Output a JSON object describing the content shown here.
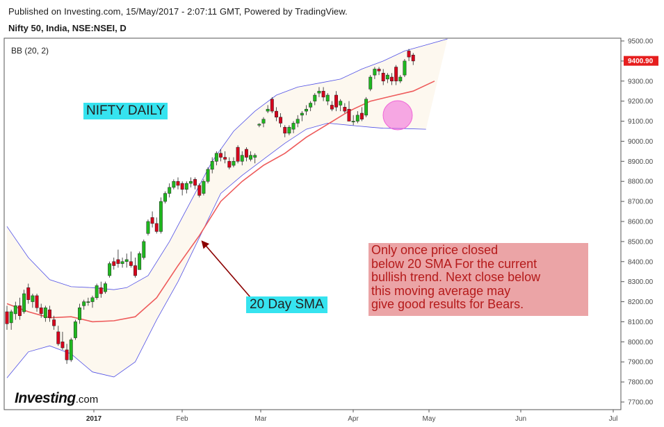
{
  "header": {
    "published": "Published on Investing.com, 15/May/2017 - 2:07:11 GMT, Powered by TradingView.",
    "symbol": "Nifty 50, India, NSE:NSEI, D"
  },
  "indicator_label": "BB (20, 2)",
  "annotations": {
    "nifty_daily": "NIFTY DAILY",
    "sma_label": "20 Day SMA",
    "note": "Only once price closed\nbelow 20 SMA For the current\nbullish trend. Next close below\nthis moving average may\ngive good results for Bears."
  },
  "logo": {
    "text": "Investing",
    "suffix": ".com"
  },
  "colors": {
    "up": "#1fb81f",
    "down": "#d6001c",
    "sma": "#ee5b5b",
    "band": "#5050e6",
    "band_fill": "#fdf8ef",
    "arrow": "#8b0000",
    "highlight": "#f065d8",
    "last_price_bg": "#e61e1e"
  },
  "chart_data": {
    "type": "candlestick",
    "title": "Nifty 50, India, NSE:NSEI, D",
    "indicator": "BB (20, 2)",
    "ylim": [
      7680,
      9520
    ],
    "y_ticks": [
      "9500.00",
      "9400.00",
      "9300.00",
      "9200.00",
      "9100.00",
      "9000.00",
      "8900.00",
      "8800.00",
      "8700.00",
      "8600.00",
      "8500.00",
      "8400.00",
      "8300.00",
      "8200.00",
      "8100.00",
      "8000.00",
      "7900.00",
      "7800.00",
      "7700.00"
    ],
    "x_ticks": [
      "2017",
      "Feb",
      "Mar",
      "Apr",
      "May",
      "Jun",
      "Jul"
    ],
    "last_price": "9400.90",
    "upper_band": [
      [
        0,
        8575
      ],
      [
        5,
        8420
      ],
      [
        10,
        8310
      ],
      [
        15,
        8275
      ],
      [
        20,
        8270
      ],
      [
        25,
        8260
      ],
      [
        28,
        8270
      ],
      [
        33,
        8330
      ],
      [
        38,
        8500
      ],
      [
        43,
        8700
      ],
      [
        48,
        8900
      ],
      [
        53,
        9050
      ],
      [
        58,
        9150
      ],
      [
        63,
        9230
      ],
      [
        68,
        9270
      ],
      [
        73,
        9290
      ],
      [
        78,
        9310
      ],
      [
        83,
        9360
      ],
      [
        88,
        9400
      ],
      [
        93,
        9450
      ],
      [
        98,
        9480
      ],
      [
        103,
        9510
      ]
    ],
    "sma20": [
      [
        0,
        8190
      ],
      [
        5,
        8150
      ],
      [
        10,
        8120
      ],
      [
        15,
        8125
      ],
      [
        20,
        8100
      ],
      [
        25,
        8105
      ],
      [
        30,
        8125
      ],
      [
        35,
        8220
      ],
      [
        40,
        8380
      ],
      [
        45,
        8530
      ],
      [
        50,
        8700
      ],
      [
        55,
        8800
      ],
      [
        60,
        8880
      ],
      [
        65,
        8940
      ],
      [
        70,
        9020
      ],
      [
        75,
        9085
      ],
      [
        80,
        9150
      ],
      [
        85,
        9200
      ],
      [
        90,
        9225
      ],
      [
        95,
        9250
      ],
      [
        100,
        9300
      ]
    ],
    "lower_band": [
      [
        0,
        7820
      ],
      [
        5,
        7950
      ],
      [
        10,
        7980
      ],
      [
        15,
        7940
      ],
      [
        20,
        7850
      ],
      [
        25,
        7825
      ],
      [
        30,
        7900
      ],
      [
        35,
        8110
      ],
      [
        40,
        8300
      ],
      [
        45,
        8520
      ],
      [
        50,
        8740
      ],
      [
        55,
        8830
      ],
      [
        60,
        8910
      ],
      [
        65,
        8990
      ],
      [
        70,
        9060
      ],
      [
        75,
        9090
      ],
      [
        80,
        9080
      ],
      [
        85,
        9070
      ],
      [
        88,
        9065
      ],
      [
        93,
        9063
      ],
      [
        98,
        9060
      ]
    ],
    "candles": [
      {
        "o": 8150,
        "h": 8180,
        "l": 8060,
        "c": 8090
      },
      {
        "o": 8095,
        "h": 8160,
        "l": 8060,
        "c": 8150
      },
      {
        "o": 8140,
        "h": 8200,
        "l": 8110,
        "c": 8180
      },
      {
        "o": 8180,
        "h": 8220,
        "l": 8110,
        "c": 8130
      },
      {
        "o": 8150,
        "h": 8260,
        "l": 8140,
        "c": 8240
      },
      {
        "o": 8270,
        "h": 8290,
        "l": 8190,
        "c": 8210
      },
      {
        "o": 8200,
        "h": 8240,
        "l": 8170,
        "c": 8230
      },
      {
        "o": 8230,
        "h": 8240,
        "l": 8150,
        "c": 8170
      },
      {
        "o": 8170,
        "h": 8190,
        "l": 8120,
        "c": 8140
      },
      {
        "o": 8120,
        "h": 8180,
        "l": 8100,
        "c": 8170
      },
      {
        "o": 8160,
        "h": 8180,
        "l": 8100,
        "c": 8120
      },
      {
        "o": 8110,
        "h": 8130,
        "l": 8060,
        "c": 8080
      },
      {
        "o": 8050,
        "h": 8080,
        "l": 7980,
        "c": 7990
      },
      {
        "o": 8000,
        "h": 8050,
        "l": 7960,
        "c": 7970
      },
      {
        "o": 7960,
        "h": 7990,
        "l": 7890,
        "c": 7910
      },
      {
        "o": 7910,
        "h": 8020,
        "l": 7900,
        "c": 8010
      },
      {
        "o": 8020,
        "h": 8110,
        "l": 8010,
        "c": 8100
      },
      {
        "o": 8110,
        "h": 8190,
        "l": 8090,
        "c": 8170
      },
      {
        "o": 8180,
        "h": 8210,
        "l": 8160,
        "c": 8200
      },
      {
        "o": 8200,
        "h": 8220,
        "l": 8180,
        "c": 8200
      },
      {
        "o": 8200,
        "h": 8230,
        "l": 8170,
        "c": 8220
      },
      {
        "o": 8220,
        "h": 8290,
        "l": 8210,
        "c": 8280
      },
      {
        "o": 8270,
        "h": 8300,
        "l": 8220,
        "c": 8240
      },
      {
        "o": 8250,
        "h": 8300,
        "l": 8240,
        "c": 8290
      },
      {
        "o": 8330,
        "h": 8400,
        "l": 8320,
        "c": 8390
      },
      {
        "o": 8400,
        "h": 8420,
        "l": 8360,
        "c": 8380
      },
      {
        "o": 8410,
        "h": 8460,
        "l": 8370,
        "c": 8390
      },
      {
        "o": 8390,
        "h": 8420,
        "l": 8370,
        "c": 8400
      },
      {
        "o": 8400,
        "h": 8440,
        "l": 8370,
        "c": 8410
      },
      {
        "o": 8400,
        "h": 8450,
        "l": 8370,
        "c": 8380
      },
      {
        "o": 8380,
        "h": 8420,
        "l": 8320,
        "c": 8330
      },
      {
        "o": 8360,
        "h": 8450,
        "l": 8360,
        "c": 8440
      },
      {
        "o": 8420,
        "h": 8510,
        "l": 8410,
        "c": 8500
      },
      {
        "o": 8540,
        "h": 8610,
        "l": 8530,
        "c": 8600
      },
      {
        "o": 8620,
        "h": 8650,
        "l": 8570,
        "c": 8590
      },
      {
        "o": 8590,
        "h": 8620,
        "l": 8540,
        "c": 8550
      },
      {
        "o": 8550,
        "h": 8720,
        "l": 8540,
        "c": 8700
      },
      {
        "o": 8700,
        "h": 8750,
        "l": 8690,
        "c": 8740
      },
      {
        "o": 8740,
        "h": 8790,
        "l": 8720,
        "c": 8770
      },
      {
        "o": 8770,
        "h": 8810,
        "l": 8760,
        "c": 8800
      },
      {
        "o": 8800,
        "h": 8820,
        "l": 8760,
        "c": 8780
      },
      {
        "o": 8790,
        "h": 8800,
        "l": 8730,
        "c": 8760
      },
      {
        "o": 8760,
        "h": 8800,
        "l": 8740,
        "c": 8790
      },
      {
        "o": 8790,
        "h": 8820,
        "l": 8770,
        "c": 8800
      },
      {
        "o": 8810,
        "h": 8820,
        "l": 8760,
        "c": 8780
      },
      {
        "o": 8780,
        "h": 8790,
        "l": 8720,
        "c": 8730
      },
      {
        "o": 8740,
        "h": 8810,
        "l": 8730,
        "c": 8800
      },
      {
        "o": 8800,
        "h": 8870,
        "l": 8790,
        "c": 8860
      },
      {
        "o": 8860,
        "h": 8920,
        "l": 8840,
        "c": 8900
      },
      {
        "o": 8900,
        "h": 8950,
        "l": 8880,
        "c": 8940
      },
      {
        "o": 8940,
        "h": 8960,
        "l": 8900,
        "c": 8920
      },
      {
        "o": 8920,
        "h": 8950,
        "l": 8890,
        "c": 8910
      },
      {
        "o": 8900,
        "h": 8920,
        "l": 8860,
        "c": 8870
      },
      {
        "o": 8880,
        "h": 8920,
        "l": 8870,
        "c": 8900
      },
      {
        "o": 8970,
        "h": 8980,
        "l": 8890,
        "c": 8900
      },
      {
        "o": 8900,
        "h": 8950,
        "l": 8880,
        "c": 8930
      },
      {
        "o": 8960,
        "h": 8970,
        "l": 8900,
        "c": 8920
      },
      {
        "o": 8910,
        "h": 8950,
        "l": 8900,
        "c": 8930
      },
      {
        "o": 8920,
        "h": 8940,
        "l": 8890,
        "c": 8930
      },
      {
        "o": 9080,
        "h": 9090,
        "l": 9070,
        "c": 9085
      },
      {
        "o": 9090,
        "h": 9120,
        "l": 9070,
        "c": 9110
      },
      {
        "o": 9150,
        "h": 9180,
        "l": 9140,
        "c": 9160
      },
      {
        "o": 9210,
        "h": 9220,
        "l": 9140,
        "c": 9150
      },
      {
        "o": 9150,
        "h": 9170,
        "l": 9100,
        "c": 9120
      },
      {
        "o": 9120,
        "h": 9140,
        "l": 9070,
        "c": 9090
      },
      {
        "o": 9070,
        "h": 9080,
        "l": 9020,
        "c": 9040
      },
      {
        "o": 9040,
        "h": 9080,
        "l": 9030,
        "c": 9070
      },
      {
        "o": 9060,
        "h": 9100,
        "l": 9040,
        "c": 9090
      },
      {
        "o": 9090,
        "h": 9130,
        "l": 9070,
        "c": 9110
      },
      {
        "o": 9130,
        "h": 9150,
        "l": 9100,
        "c": 9140
      },
      {
        "o": 9150,
        "h": 9180,
        "l": 9130,
        "c": 9160
      },
      {
        "o": 9170,
        "h": 9200,
        "l": 9150,
        "c": 9190
      },
      {
        "o": 9200,
        "h": 9240,
        "l": 9180,
        "c": 9230
      },
      {
        "o": 9240,
        "h": 9270,
        "l": 9220,
        "c": 9250
      },
      {
        "o": 9250,
        "h": 9270,
        "l": 9200,
        "c": 9220
      },
      {
        "o": 9200,
        "h": 9240,
        "l": 9180,
        "c": 9230
      },
      {
        "o": 9180,
        "h": 9200,
        "l": 9150,
        "c": 9160
      },
      {
        "o": 9230,
        "h": 9250,
        "l": 9150,
        "c": 9170
      },
      {
        "o": 9180,
        "h": 9210,
        "l": 9150,
        "c": 9200
      },
      {
        "o": 9170,
        "h": 9190,
        "l": 9140,
        "c": 9150
      },
      {
        "o": 9160,
        "h": 9200,
        "l": 9100,
        "c": 9100
      },
      {
        "o": 9100,
        "h": 9130,
        "l": 9080,
        "c": 9100
      },
      {
        "o": 9100,
        "h": 9150,
        "l": 9090,
        "c": 9130
      },
      {
        "o": 9140,
        "h": 9170,
        "l": 9100,
        "c": 9110
      },
      {
        "o": 9130,
        "h": 9220,
        "l": 9120,
        "c": 9210
      },
      {
        "o": 9260,
        "h": 9330,
        "l": 9250,
        "c": 9320
      },
      {
        "o": 9330,
        "h": 9370,
        "l": 9310,
        "c": 9360
      },
      {
        "o": 9360,
        "h": 9370,
        "l": 9330,
        "c": 9350
      },
      {
        "o": 9340,
        "h": 9360,
        "l": 9280,
        "c": 9300
      },
      {
        "o": 9310,
        "h": 9340,
        "l": 9290,
        "c": 9330
      },
      {
        "o": 9320,
        "h": 9340,
        "l": 9280,
        "c": 9300
      },
      {
        "o": 9370,
        "h": 9380,
        "l": 9280,
        "c": 9300
      },
      {
        "o": 9300,
        "h": 9330,
        "l": 9290,
        "c": 9320
      },
      {
        "o": 9330,
        "h": 9410,
        "l": 9320,
        "c": 9400
      },
      {
        "o": 9450,
        "h": 9460,
        "l": 9400,
        "c": 9420
      },
      {
        "o": 9430,
        "h": 9440,
        "l": 9380,
        "c": 9400
      }
    ]
  }
}
